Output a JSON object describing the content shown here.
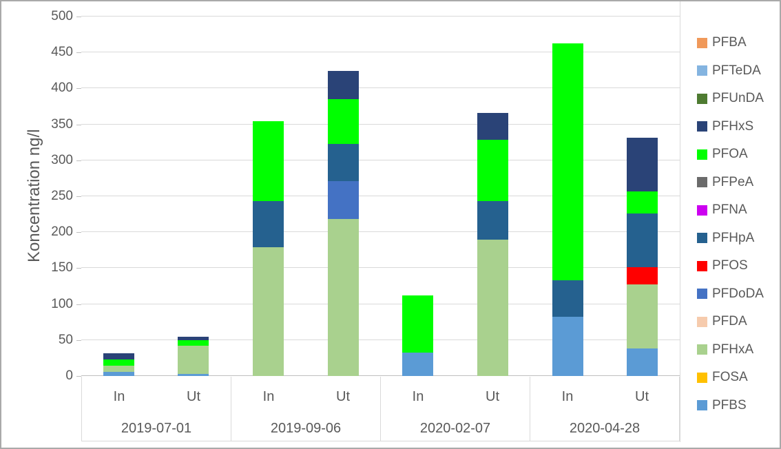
{
  "chart_data": {
    "type": "bar",
    "variant": "stacked-column",
    "title": "",
    "xlabel": "",
    "ylabel": "Koncentration ng/l",
    "ylim": [
      0,
      500
    ],
    "yticks": [
      0,
      50,
      100,
      150,
      200,
      250,
      300,
      350,
      400,
      450,
      500
    ],
    "grid": true,
    "legend_position": "right",
    "axis_text_color": "#595959",
    "gridline_color": "#d9d9d9",
    "series_colors": {
      "PFBA": "#F0995A",
      "PFTeDA": "#84B4E0",
      "PFUnDA": "#4E7B31",
      "PFHxS": "#2A4377",
      "PFOA": "#00FF00",
      "PFPeA": "#6B6B6B",
      "PFNA": "#CC00F0",
      "PFHpA": "#25618F",
      "PFOS": "#FF0000",
      "PFDoDA": "#4472C4",
      "PFDA": "#F6CBAD",
      "PFHxA": "#A9D18E",
      "FOSA": "#FFC000",
      "PFBS": "#5B9BD5"
    },
    "legend_items_top_to_bottom": [
      "PFBA",
      "PFTeDA",
      "PFUnDA",
      "PFHxS",
      "PFOA",
      "PFPeA",
      "PFNA",
      "PFHpA",
      "PFOS",
      "PFDoDA",
      "PFDA",
      "PFHxA",
      "FOSA",
      "PFBS"
    ],
    "stack_order_bottom_to_top": [
      "PFBS",
      "FOSA",
      "PFHxA",
      "PFDA",
      "PFDoDA",
      "PFOS",
      "PFHpA",
      "PFNA",
      "PFPeA",
      "PFOA",
      "PFHxS",
      "PFUnDA",
      "PFTeDA",
      "PFBA"
    ],
    "groups": [
      {
        "date": "2019-07-01",
        "bars": [
          {
            "label": "In",
            "total": 32,
            "segments": [
              {
                "name": "PFBS",
                "value": 6
              },
              {
                "name": "PFHxA",
                "value": 8
              },
              {
                "name": "PFOA",
                "value": 9
              },
              {
                "name": "PFHxS",
                "value": 9
              }
            ]
          },
          {
            "label": "Ut",
            "total": 55,
            "segments": [
              {
                "name": "PFBS",
                "value": 3
              },
              {
                "name": "PFHxA",
                "value": 39
              },
              {
                "name": "PFOA",
                "value": 8
              },
              {
                "name": "PFHxS",
                "value": 5
              }
            ]
          }
        ]
      },
      {
        "date": "2019-09-06",
        "bars": [
          {
            "label": "In",
            "total": 354,
            "segments": [
              {
                "name": "PFHxA",
                "value": 179
              },
              {
                "name": "PFHpA",
                "value": 64
              },
              {
                "name": "PFOA",
                "value": 111
              }
            ]
          },
          {
            "label": "Ut",
            "total": 424,
            "segments": [
              {
                "name": "PFHxA",
                "value": 218
              },
              {
                "name": "PFDoDA",
                "value": 53
              },
              {
                "name": "PFHpA",
                "value": 52
              },
              {
                "name": "PFOA",
                "value": 62
              },
              {
                "name": "PFHxS",
                "value": 39
              }
            ]
          }
        ]
      },
      {
        "date": "2020-02-07",
        "bars": [
          {
            "label": "In",
            "total": 112,
            "segments": [
              {
                "name": "PFBS",
                "value": 33
              },
              {
                "name": "PFOA",
                "value": 79
              }
            ]
          },
          {
            "label": "Ut",
            "total": 366,
            "segments": [
              {
                "name": "PFHxA",
                "value": 190
              },
              {
                "name": "PFHpA",
                "value": 53
              },
              {
                "name": "PFOA",
                "value": 86
              },
              {
                "name": "PFHxS",
                "value": 37
              }
            ]
          }
        ]
      },
      {
        "date": "2020-04-28",
        "bars": [
          {
            "label": "In",
            "total": 463,
            "segments": [
              {
                "name": "PFBS",
                "value": 82
              },
              {
                "name": "PFHpA",
                "value": 51
              },
              {
                "name": "PFOA",
                "value": 330
              }
            ]
          },
          {
            "label": "Ut",
            "total": 331,
            "segments": [
              {
                "name": "PFBS",
                "value": 38
              },
              {
                "name": "PFHxA",
                "value": 89
              },
              {
                "name": "PFOS",
                "value": 24
              },
              {
                "name": "PFHpA",
                "value": 75
              },
              {
                "name": "PFOA",
                "value": 31
              },
              {
                "name": "PFHxS",
                "value": 74
              }
            ]
          }
        ]
      }
    ]
  }
}
